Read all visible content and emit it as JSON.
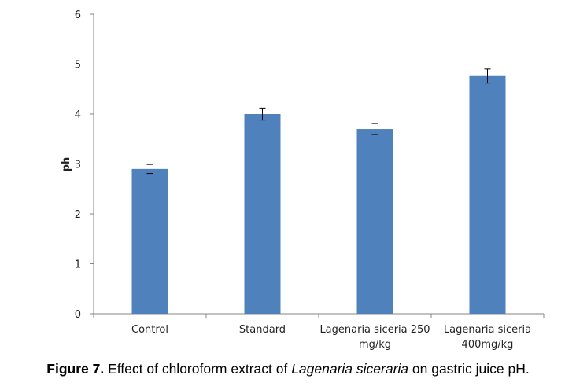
{
  "chart_data": {
    "type": "bar",
    "title": "",
    "xlabel": "",
    "ylabel": "ph",
    "ylim": [
      0,
      6
    ],
    "yticks": [
      0,
      1,
      2,
      3,
      4,
      5,
      6
    ],
    "categories": [
      [
        "Control"
      ],
      [
        "Standard"
      ],
      [
        "Lagenaria siceria 250",
        "mg/kg"
      ],
      [
        "Lagenaria siceria",
        "400mg/kg"
      ]
    ],
    "values": [
      2.9,
      4.0,
      3.7,
      4.76
    ],
    "errors": [
      0.09,
      0.12,
      0.11,
      0.14
    ],
    "colors": {
      "bar": "#4f81bd",
      "axis": "#868686",
      "error": "#000000"
    }
  },
  "caption": {
    "label": "Figure 7.",
    "text_before": " Effect of chloroform extract of ",
    "species": "Lagenaria siceraria",
    "text_after": " on gastric juice pH."
  }
}
